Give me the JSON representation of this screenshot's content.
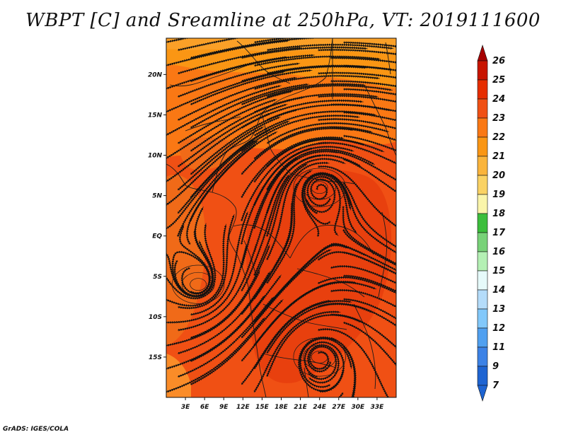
{
  "title": "WBPT [C] and Sreamline at 250hPa, VT: 2019111600",
  "credit": "GrADS: IGES/COLA",
  "map": {
    "lon_range": [
      0,
      36
    ],
    "lat_range": [
      -20,
      24.5
    ],
    "lon_ticks": [
      {
        "value": 3,
        "label": "3E"
      },
      {
        "value": 6,
        "label": "6E"
      },
      {
        "value": 9,
        "label": "9E"
      },
      {
        "value": 12,
        "label": "12E"
      },
      {
        "value": 15,
        "label": "15E"
      },
      {
        "value": 18,
        "label": "18E"
      },
      {
        "value": 21,
        "label": "21E"
      },
      {
        "value": 24,
        "label": "24E"
      },
      {
        "value": 27,
        "label": "27E"
      },
      {
        "value": 30,
        "label": "30E"
      },
      {
        "value": 33,
        "label": "33E"
      }
    ],
    "lat_ticks": [
      {
        "value": 20,
        "label": "20N"
      },
      {
        "value": 15,
        "label": "15N"
      },
      {
        "value": 10,
        "label": "10N"
      },
      {
        "value": 5,
        "label": "5N"
      },
      {
        "value": 0,
        "label": "EQ"
      },
      {
        "value": -5,
        "label": "5S"
      },
      {
        "value": -10,
        "label": "10S"
      },
      {
        "value": -15,
        "label": "15S"
      }
    ],
    "vortices": [
      {
        "name": "cyclonic-center-north",
        "lon": 24,
        "lat": 6
      },
      {
        "name": "anticyclonic-center-west",
        "lon": 5,
        "lat": -6
      },
      {
        "name": "cyclonic-center-south",
        "lon": 24,
        "lat": -15
      }
    ]
  },
  "colorbar": {
    "levels": [
      {
        "label": "26",
        "color": "#a50000"
      },
      {
        "label": "25",
        "color": "#c81400"
      },
      {
        "label": "24",
        "color": "#e62d00"
      },
      {
        "label": "23",
        "color": "#f05014"
      },
      {
        "label": "22",
        "color": "#fa7814"
      },
      {
        "label": "21",
        "color": "#fa9614"
      },
      {
        "label": "20",
        "color": "#fab43c"
      },
      {
        "label": "19",
        "color": "#fad264"
      },
      {
        "label": "18",
        "color": "#faf5aa"
      },
      {
        "label": "17",
        "color": "#3cbe3c"
      },
      {
        "label": "16",
        "color": "#78d278"
      },
      {
        "label": "15",
        "color": "#b4f0b4"
      },
      {
        "label": "14",
        "color": "#e6fafa"
      },
      {
        "label": "13",
        "color": "#b4dcfa"
      },
      {
        "label": "12",
        "color": "#82c8fa"
      },
      {
        "label": "11",
        "color": "#50a0f0"
      },
      {
        "label": "9",
        "color": "#3c82e6"
      },
      {
        "label": "7",
        "color": "#1e64d2"
      }
    ]
  }
}
